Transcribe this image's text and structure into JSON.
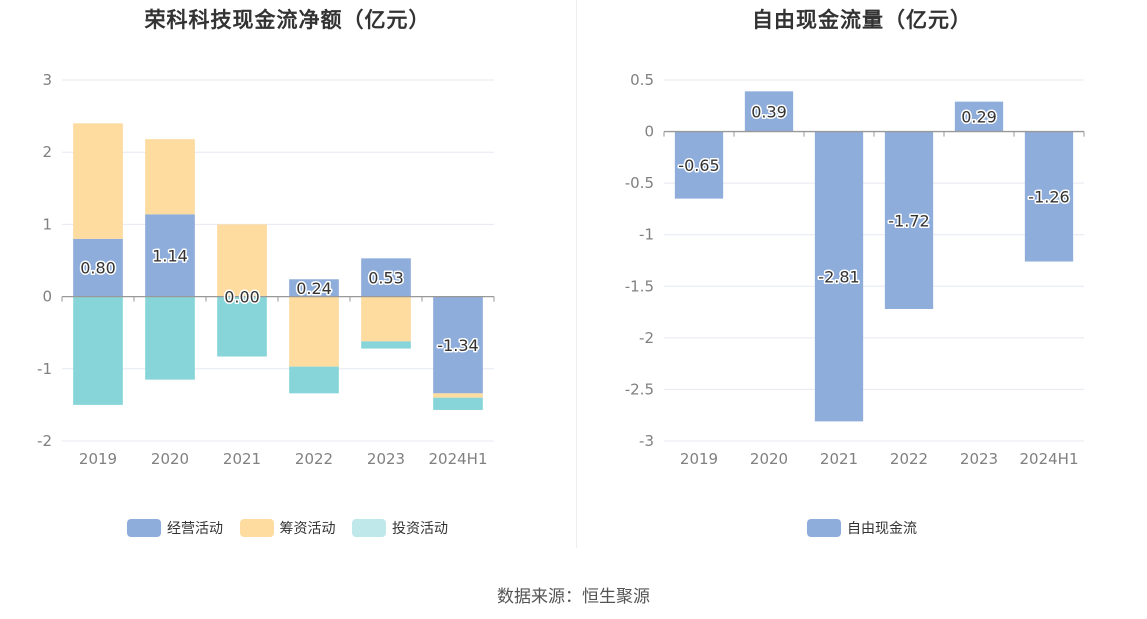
{
  "source_label": "数据来源：恒生聚源",
  "colors": {
    "operating": "#8eaddb",
    "financing": "#fedb9f",
    "investing": "#87d5d9",
    "grid": "#e6e8f2",
    "axis": "#999999"
  },
  "chart_data": [
    {
      "type": "bar",
      "stacked": true,
      "title": "荣科科技现金流净额（亿元）",
      "categories": [
        "2019",
        "2020",
        "2021",
        "2022",
        "2023",
        "2024H1"
      ],
      "ylim": [
        -2,
        3
      ],
      "yticks": [
        "-2",
        "-1",
        "0",
        "1",
        "2",
        "3"
      ],
      "grid": true,
      "legend_position": "bottom",
      "series": [
        {
          "name": "经营活动",
          "color": "#8eaddb",
          "values": [
            0.8,
            1.14,
            0.0,
            0.24,
            0.53,
            -1.34
          ],
          "labels": [
            "0.80",
            "1.14",
            "0.00",
            "0.24",
            "0.53",
            "-1.34"
          ]
        },
        {
          "name": "筹资活动",
          "color": "#fedb9f",
          "values": [
            1.6,
            1.04,
            1.0,
            -0.97,
            -0.62,
            -0.06
          ]
        },
        {
          "name": "投资活动",
          "color": "#87d5d9",
          "values": [
            -1.5,
            -1.15,
            -0.83,
            -0.37,
            -0.1,
            -0.17
          ]
        }
      ]
    },
    {
      "type": "bar",
      "title": "自由现金流量（亿元）",
      "categories": [
        "2019",
        "2020",
        "2021",
        "2022",
        "2023",
        "2024H1"
      ],
      "ylim": [
        -3,
        0.5
      ],
      "yticks": [
        "-3",
        "-2.5",
        "-2",
        "-1.5",
        "-1",
        "-0.5",
        "0",
        "0.5"
      ],
      "grid": true,
      "legend_position": "bottom",
      "series": [
        {
          "name": "自由现金流",
          "color": "#8eaddb",
          "values": [
            -0.65,
            0.39,
            -2.81,
            -1.72,
            0.29,
            -1.26
          ],
          "labels": [
            "-0.65",
            "0.39",
            "-2.81",
            "-1.72",
            "0.29",
            "-1.26"
          ]
        }
      ]
    }
  ]
}
